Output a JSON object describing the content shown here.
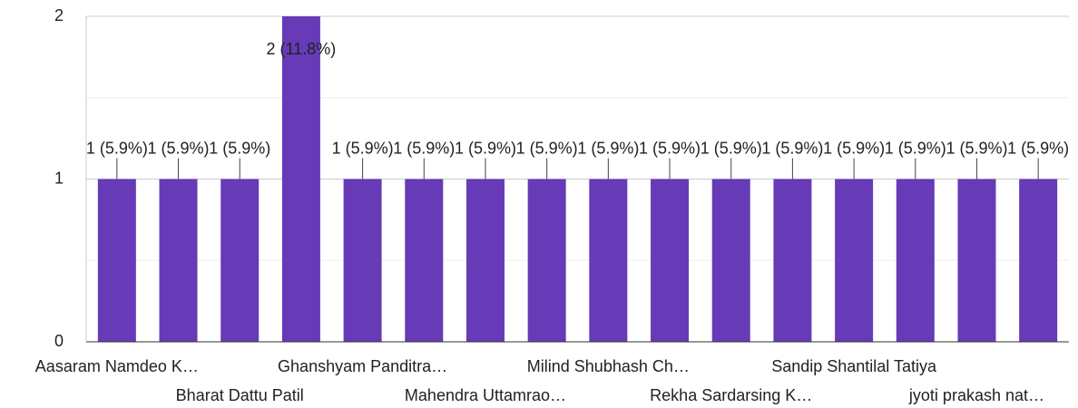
{
  "chart_data": {
    "type": "bar",
    "categories": [
      "Aasaram Namdeo K…",
      null,
      "Bharat Dattu Patil",
      null,
      "Ghanshyam Panditra…",
      null,
      "Mahendra Uttamrao…",
      null,
      "Milind Shubhash Ch…",
      null,
      "Rekha Sardarsing K…",
      null,
      "Sandip Shantilal Tatiya",
      null,
      "jyoti prakash nat…",
      null
    ],
    "values": [
      1,
      1,
      1,
      2,
      1,
      1,
      1,
      1,
      1,
      1,
      1,
      1,
      1,
      1,
      1,
      1
    ],
    "value_labels": [
      "1 (5.9%)",
      "1 (5.9%)",
      "1 (5.9%)",
      "2 (11.8%)",
      "1 (5.9%)",
      "1 (5.9%)",
      "1 (5.9%)",
      "1 (5.9%)",
      "1 (5.9%)",
      "1 (5.9%)",
      "1 (5.9%)",
      "1 (5.9%)",
      "1 (5.9%)",
      "1 (5.9%)",
      "1 (5.9%)",
      "1 (5.9%)"
    ],
    "color": "#673ab7",
    "ylim": [
      0,
      2
    ],
    "yticks": [
      0,
      1,
      2
    ],
    "grid": true
  }
}
